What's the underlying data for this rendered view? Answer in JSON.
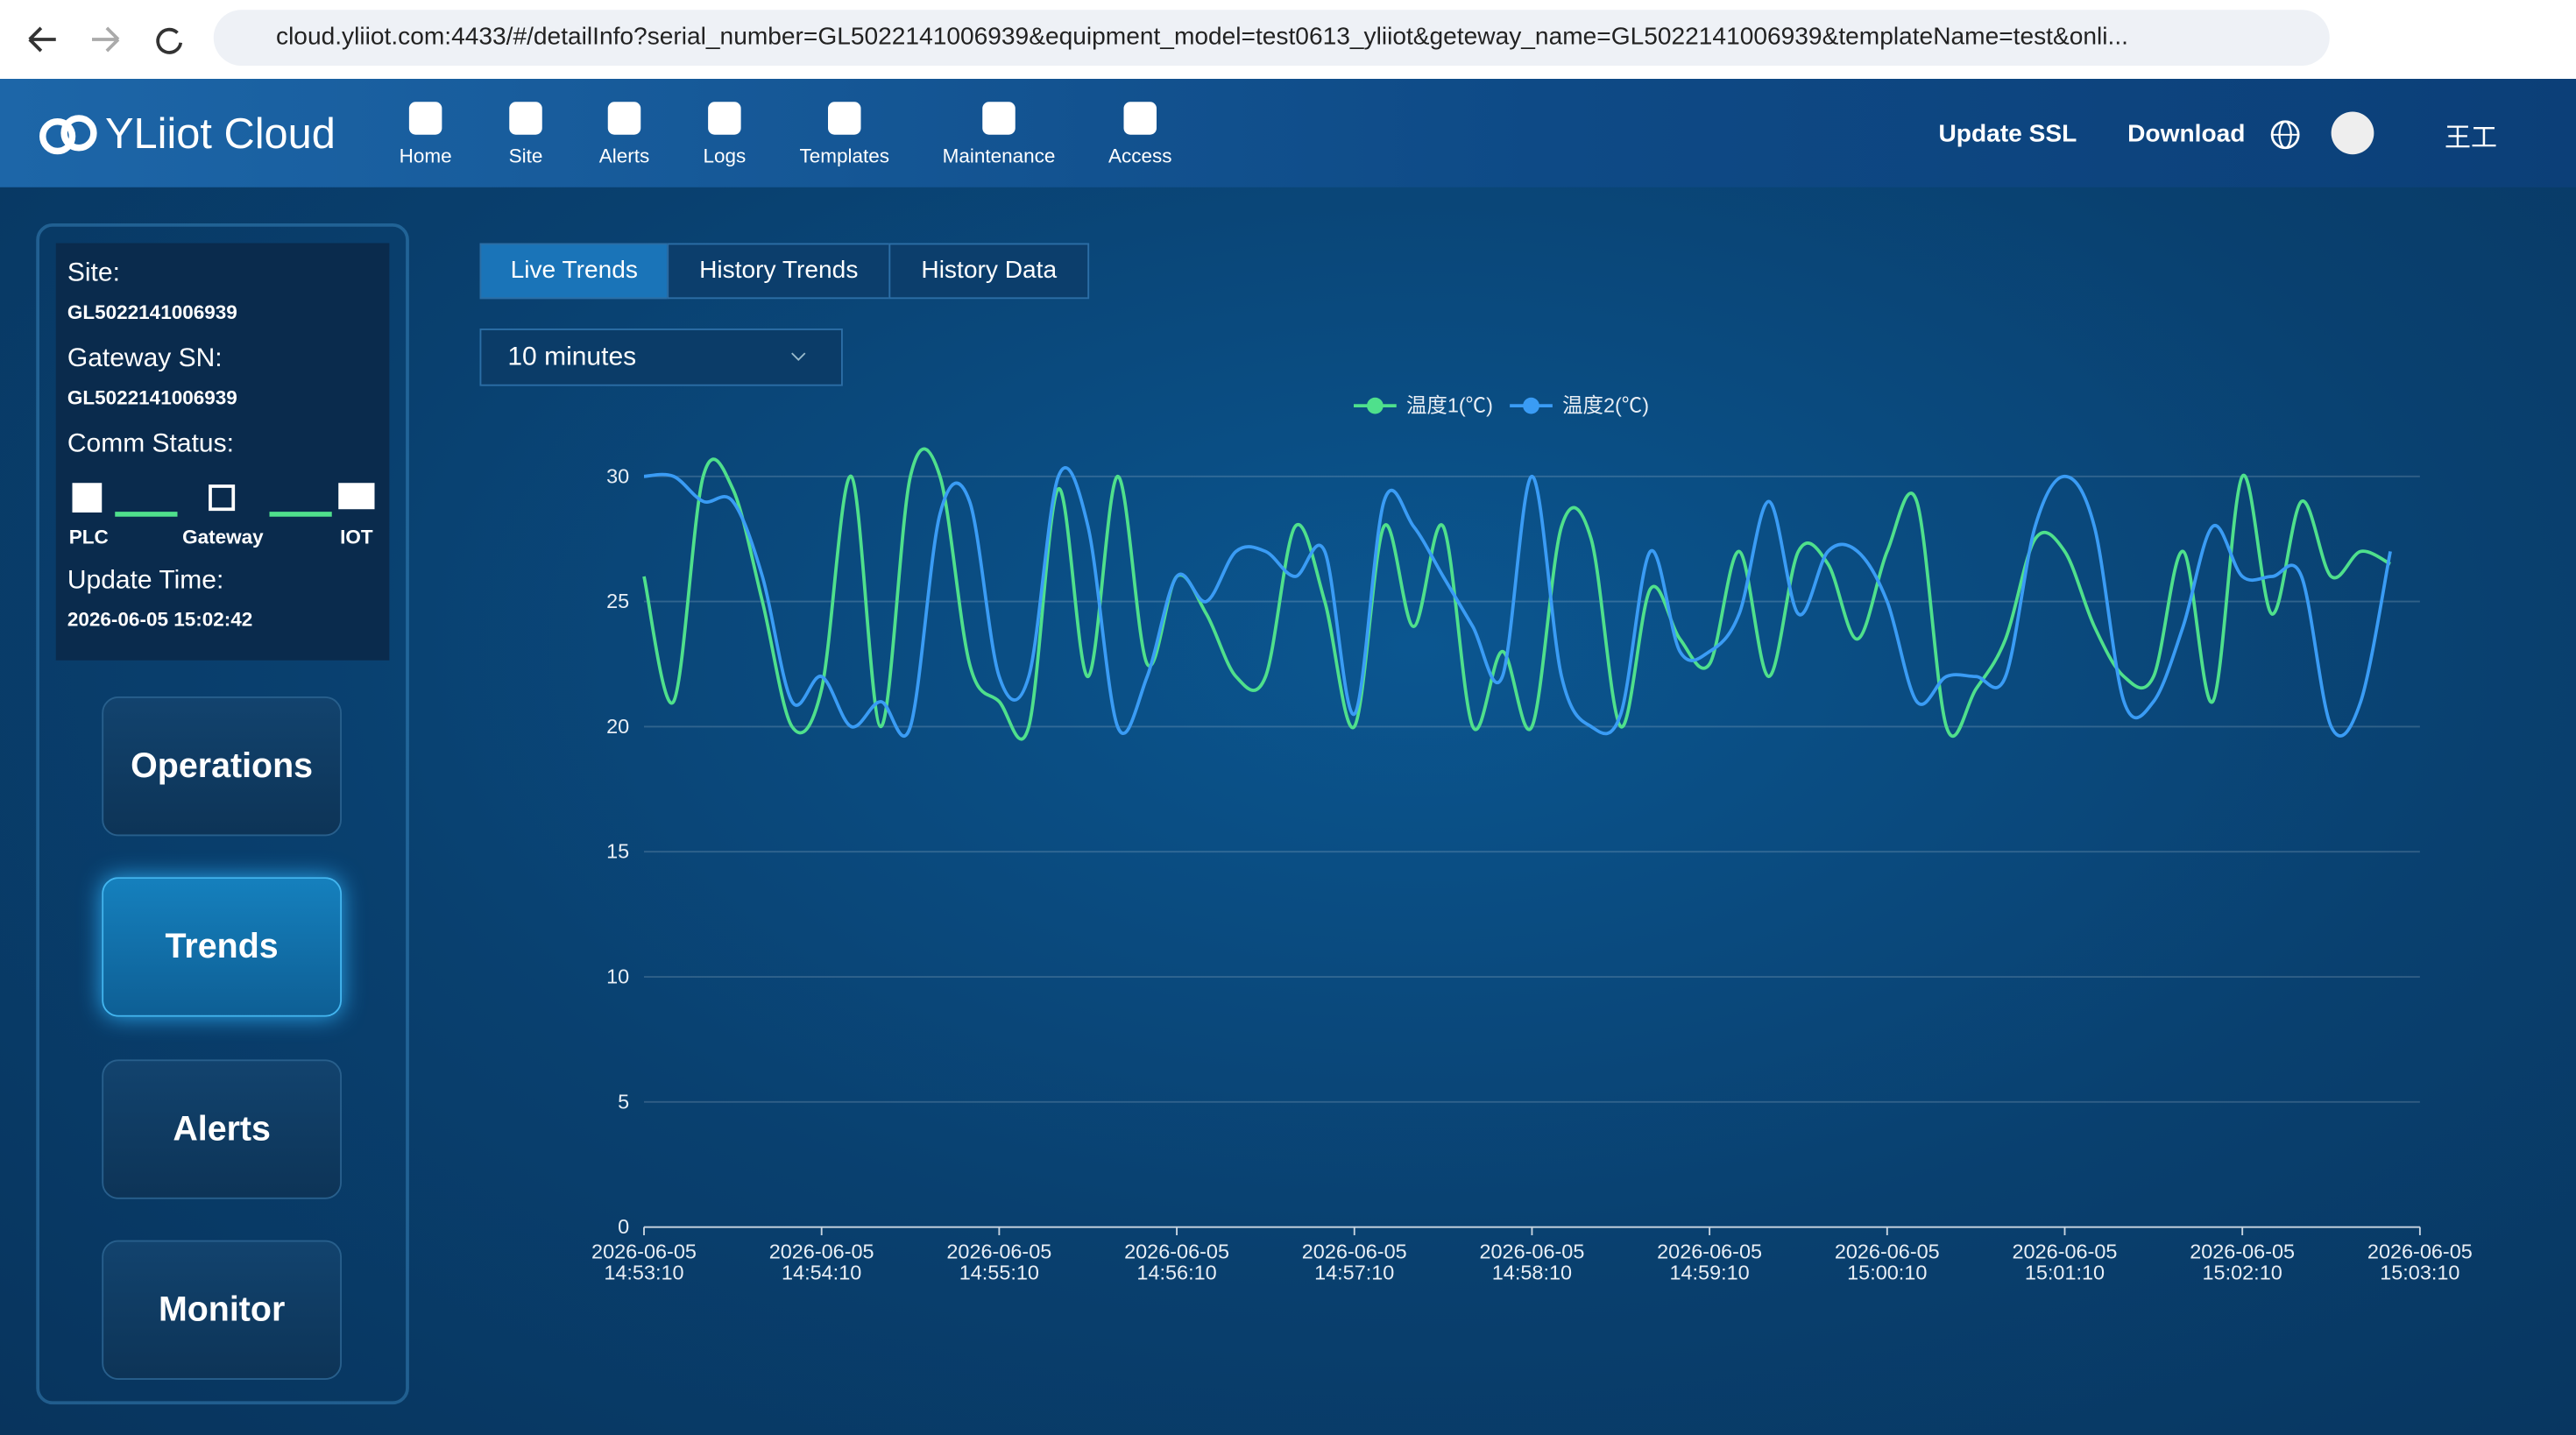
{
  "browser": {
    "url": "cloud.yliiot.com:4433/#/detailInfo?serial_number=GL5022141006939&equipment_model=test0613_yliiot&geteway_name=GL5022141006939&templateName=test&onli..."
  },
  "header": {
    "brand": "YLiiot Cloud",
    "nav": [
      "Home",
      "Site",
      "Alerts",
      "Logs",
      "Templates",
      "Maintenance",
      "Access"
    ],
    "update_ssl": "Update SSL",
    "download": "Download",
    "user": "王工"
  },
  "sidebar": {
    "site_label": "Site:",
    "site": "GL5022141006939",
    "gateway_label": "Gateway SN:",
    "gateway": "GL5022141006939",
    "comm_label": "Comm Status:",
    "comm": [
      "PLC",
      "Gateway",
      "IOT"
    ],
    "update_label": "Update Time:",
    "update_time": "2026-06-05 15:02:42",
    "menu": [
      "Operations",
      "Trends",
      "Alerts",
      "Monitor"
    ]
  },
  "tabs": [
    "Live Trends",
    "History Trends",
    "History Data"
  ],
  "range": "10 minutes",
  "chart_data": {
    "type": "line",
    "categories": [
      "2026-06-05\n14:53:10",
      null,
      null,
      null,
      null,
      null,
      "2026-06-05\n14:54:10",
      null,
      null,
      null,
      null,
      null,
      "2026-06-05\n14:55:10",
      null,
      null,
      null,
      null,
      null,
      "2026-06-05\n14:56:10",
      null,
      null,
      null,
      null,
      null,
      "2026-06-05\n14:57:10",
      null,
      null,
      null,
      null,
      null,
      "2026-06-05\n14:58:10",
      null,
      null,
      null,
      null,
      null,
      "2026-06-05\n14:59:10",
      null,
      null,
      null,
      null,
      null,
      "2026-06-05\n15:00:10",
      null,
      null,
      null,
      null,
      null,
      "2026-06-05\n15:01:10",
      null,
      null,
      null,
      null,
      null,
      "2026-06-05\n15:02:10",
      null,
      null,
      null,
      null,
      null,
      "2026-06-05\n15:03:10"
    ],
    "series": [
      {
        "name": "温度1(℃)",
        "color": "#4fe08c",
        "values": [
          26,
          21,
          30,
          29.5,
          25,
          20,
          21.5,
          30,
          20,
          30,
          30,
          22.5,
          21,
          20,
          29.5,
          22,
          30,
          22.5,
          26,
          24.5,
          22,
          22,
          28,
          25,
          20,
          28,
          24,
          28,
          20,
          23,
          20,
          28,
          27.5,
          20,
          25.5,
          23.5,
          22.5,
          27,
          22,
          27,
          26.5,
          23.5,
          27,
          29,
          20,
          21.5,
          23.5,
          27.5,
          27,
          24,
          22,
          22,
          27,
          21,
          30,
          24.5,
          29,
          26,
          27,
          26.5,
          null
        ]
      },
      {
        "name": "温度2(℃)",
        "color": "#3a9cf5",
        "values": [
          30,
          30,
          29,
          29,
          26,
          21,
          22,
          20,
          21,
          20,
          28.5,
          29,
          22,
          22,
          30,
          28,
          20,
          22,
          26,
          25,
          27,
          27,
          26,
          27,
          20.5,
          29,
          28,
          26,
          24,
          22,
          30,
          22,
          20,
          20.5,
          27,
          23,
          23,
          24.5,
          29,
          24.5,
          27,
          27,
          25,
          21,
          22,
          22,
          22,
          28,
          30,
          28,
          21,
          21,
          24,
          28,
          26,
          26,
          26,
          20,
          21,
          27,
          null
        ]
      }
    ],
    "ylim": [
      0,
      30
    ],
    "yticks": [
      0,
      5,
      10,
      15,
      20,
      25,
      30
    ],
    "grid": true,
    "legend": "top"
  }
}
